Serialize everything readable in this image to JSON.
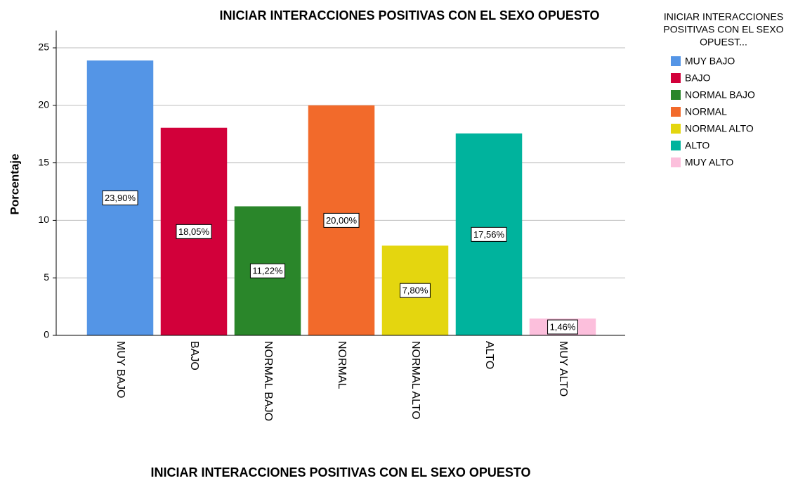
{
  "chart_data": {
    "type": "bar",
    "title": "INICIAR INTERACCIONES POSITIVAS CON EL SEXO OPUESTO",
    "x_label": "INICIAR INTERACCIONES POSITIVAS CON EL SEXO OPUESTO",
    "y_label": "Porcentaje",
    "legend_title": [
      "INICIAR INTERACCIONES",
      "POSITIVAS CON EL SEXO",
      "OPUEST..."
    ],
    "categories": [
      "MUY BAJO",
      "BAJO",
      "NORMAL BAJO",
      "NORMAL",
      "NORMAL ALTO",
      "ALTO",
      "MUY ALTO"
    ],
    "values": [
      23.9,
      18.05,
      11.22,
      20.0,
      7.8,
      17.56,
      1.46
    ],
    "value_labels": [
      "23,90%",
      "18,05%",
      "11,22%",
      "20,00%",
      "7,80%",
      "17,56%",
      "1,46%"
    ],
    "colors": [
      "#5495e6",
      "#d2003a",
      "#2a862a",
      "#f26a2b",
      "#e4d60f",
      "#00b39d",
      "#fcbfdc"
    ],
    "ylim": [
      0,
      26.5
    ],
    "yticks": [
      0,
      5,
      10,
      15,
      20,
      25
    ],
    "grid": true,
    "legend": "right"
  }
}
